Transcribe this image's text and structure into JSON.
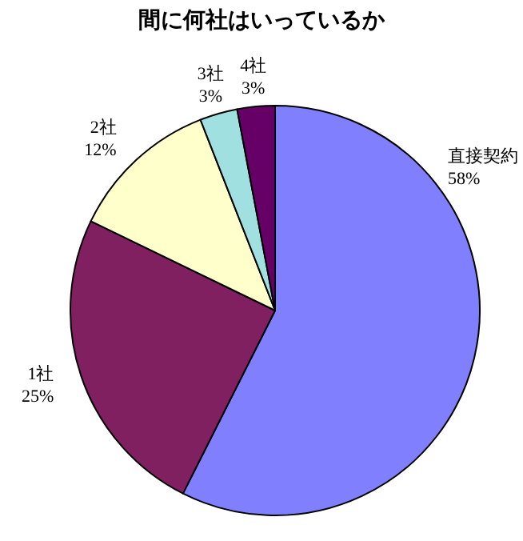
{
  "chart_data": {
    "type": "pie",
    "title": "間に何社はいっているか",
    "categories": [
      "直接契約",
      "1社",
      "2社",
      "3社",
      "4社"
    ],
    "values": [
      58,
      25,
      12,
      3,
      3
    ],
    "colors": [
      "#8080ff",
      "#802060",
      "#ffffcc",
      "#a0e0e0",
      "#660066"
    ],
    "value_labels": [
      "58%",
      "25%",
      "12%",
      "3%",
      "3%"
    ]
  }
}
